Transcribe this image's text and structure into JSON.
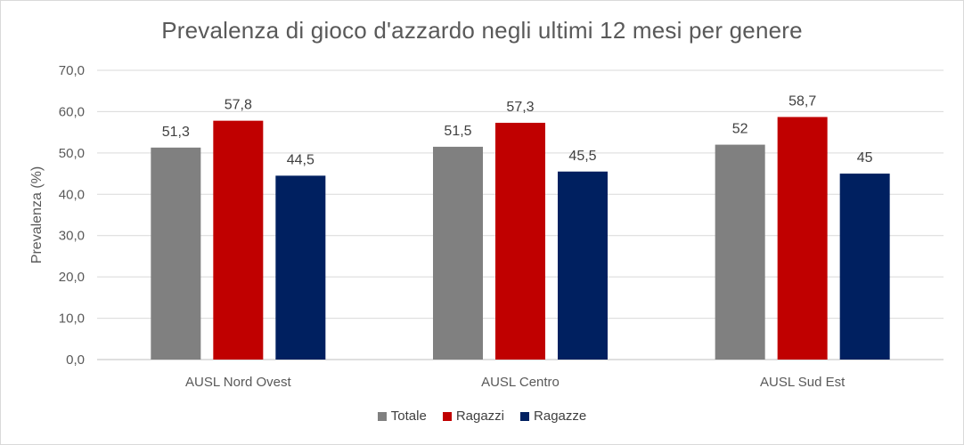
{
  "chart_data": {
    "type": "bar",
    "title": "Prevalenza di gioco d'azzardo negli ultimi 12 mesi per genere",
    "xlabel": "",
    "ylabel": "Prevalenza (%)",
    "ylim": [
      0,
      70
    ],
    "yticks": [
      0,
      10,
      20,
      30,
      40,
      50,
      60,
      70
    ],
    "ytick_labels": [
      "0,0",
      "10,0",
      "20,0",
      "30,0",
      "40,0",
      "50,0",
      "60,0",
      "70,0"
    ],
    "grid": true,
    "legend_position": "bottom",
    "categories": [
      "AUSL Nord Ovest",
      "AUSL Centro",
      "AUSL Sud Est"
    ],
    "series": [
      {
        "name": "Totale",
        "color": "#808080",
        "values": [
          51.3,
          51.5,
          52
        ],
        "labels": [
          "51,3",
          "51,5",
          "52"
        ]
      },
      {
        "name": "Ragazzi",
        "color": "#c00000",
        "values": [
          57.8,
          57.3,
          58.7
        ],
        "labels": [
          "57,8",
          "57,3",
          "58,7"
        ]
      },
      {
        "name": "Ragazze",
        "color": "#002060",
        "values": [
          44.5,
          45.5,
          45
        ],
        "labels": [
          "44,5",
          "45,5",
          "45"
        ]
      }
    ]
  }
}
